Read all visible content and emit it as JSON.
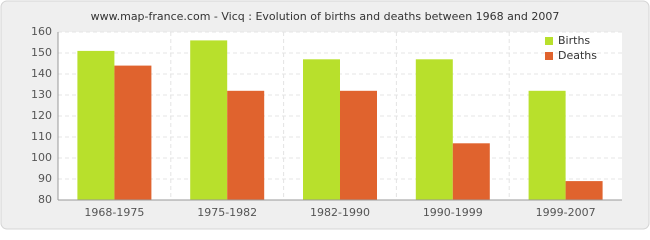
{
  "chart_data": {
    "type": "bar",
    "title": "www.map-france.com - Vicq : Evolution of births and deaths between 1968 and 2007",
    "categories": [
      "1968-1975",
      "1975-1982",
      "1982-1990",
      "1990-1999",
      "1999-2007"
    ],
    "series": [
      {
        "name": "Births",
        "color": "#b8e02c",
        "values": [
          151,
          156,
          147,
          147,
          132
        ]
      },
      {
        "name": "Deaths",
        "color": "#e0632e",
        "values": [
          144,
          132,
          132,
          107,
          89
        ]
      }
    ],
    "ylim": [
      80,
      160
    ],
    "yticks": [
      80,
      90,
      100,
      110,
      120,
      130,
      140,
      150,
      160
    ],
    "grid": true,
    "legend": "top-right"
  }
}
